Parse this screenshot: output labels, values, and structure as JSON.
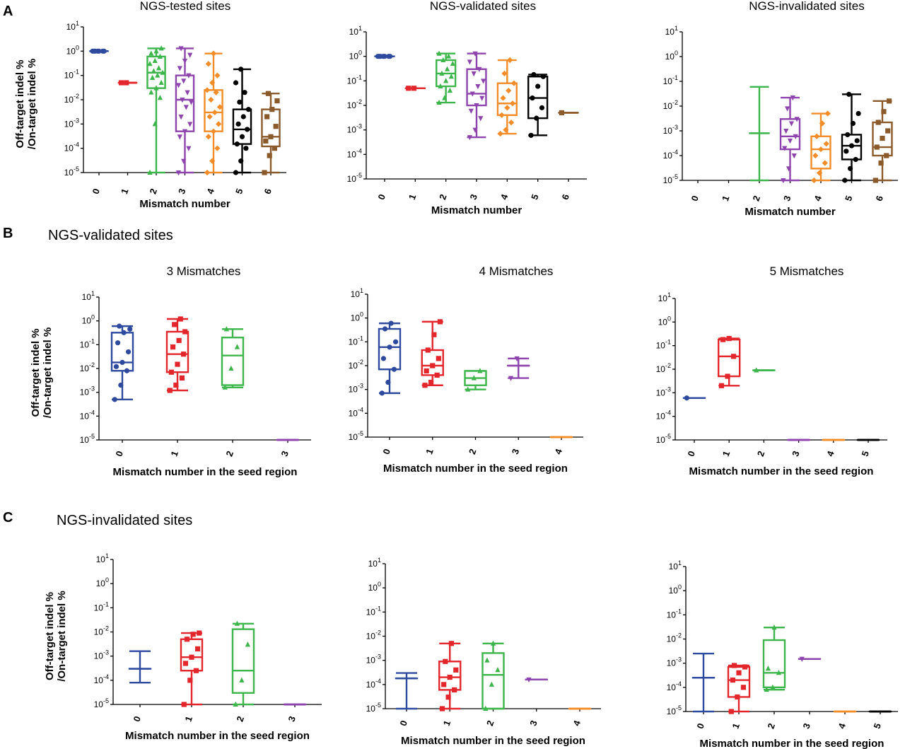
{
  "figure": {
    "panel_letters": [
      "A",
      "B",
      "C"
    ],
    "section_titles": {
      "B": "NGS-validated  sites",
      "C": "NGS-invalidated  sites"
    },
    "y_ticks": [
      "10^-5",
      "10^-4",
      "10^-3",
      "10^-2",
      "10^-1",
      "10^0",
      "10^1"
    ],
    "y_axis_label_line1": "Off-target indel %",
    "y_axis_label_line2": "/On-target indel %",
    "colors": {
      "c0": "#2e4a9e",
      "c1": "#e2262b",
      "c2": "#3cb54a",
      "c3": "#8e44ad",
      "c4": "#f28c28",
      "c5": "#000000",
      "c6": "#8b5a2b"
    },
    "marker_shapes": {
      "c0": "circle",
      "c1": "square",
      "c2": "triangle-up",
      "c3": "triangle-down",
      "c4": "diamond",
      "c5": "circle",
      "c6": "square"
    }
  },
  "chart_data": [
    {
      "id": "A1",
      "type": "box",
      "panel": "A",
      "title": "NGS-tested sites",
      "xlabel": "Mismatch number",
      "ylabel": "Off-target indel % /On-target indel %",
      "yscale": "log",
      "ylim": [
        1e-05,
        10
      ],
      "categories": [
        "0",
        "1",
        "2",
        "3",
        "4",
        "5",
        "6"
      ],
      "boxes": [
        {
          "min": 1.0,
          "q1": 1.0,
          "median": 1.0,
          "q3": 1.0,
          "max": 1.0,
          "points": [
            1.0,
            1.0,
            1.0,
            1.0,
            1.0,
            1.0,
            1.0
          ]
        },
        {
          "min": 0.05,
          "q1": 0.05,
          "median": 0.05,
          "q3": 0.05,
          "max": 0.05,
          "points": [
            0.05,
            0.05
          ]
        },
        {
          "min": 1e-05,
          "q1": 0.03,
          "median": 0.13,
          "q3": 0.6,
          "max": 1.3,
          "points": [
            1e-05,
            0.001,
            0.012,
            0.02,
            0.03,
            0.05,
            0.08,
            0.1,
            0.13,
            0.15,
            0.2,
            0.3,
            0.4,
            0.6,
            0.8,
            1.0,
            1.3
          ]
        },
        {
          "min": 1e-05,
          "q1": 0.0005,
          "median": 0.01,
          "q3": 0.1,
          "max": 1.3,
          "points": [
            1e-05,
            3e-05,
            0.0001,
            0.0003,
            0.0005,
            0.001,
            0.002,
            0.005,
            0.008,
            0.01,
            0.02,
            0.04,
            0.06,
            0.1,
            0.2,
            0.4,
            0.7,
            1.3
          ]
        },
        {
          "min": 1e-05,
          "q1": 0.0005,
          "median": 0.003,
          "q3": 0.025,
          "max": 0.8,
          "points": [
            1e-05,
            3e-05,
            0.0001,
            0.0003,
            0.0005,
            0.001,
            0.002,
            0.003,
            0.005,
            0.01,
            0.02,
            0.025,
            0.05,
            0.1,
            0.3,
            0.8
          ]
        },
        {
          "min": 1e-05,
          "q1": 0.00015,
          "median": 0.0006,
          "q3": 0.004,
          "max": 0.18,
          "points": [
            1e-05,
            3e-05,
            0.0001,
            0.00015,
            0.0003,
            0.0006,
            0.001,
            0.002,
            0.004,
            0.008,
            0.02,
            0.05,
            0.18
          ]
        },
        {
          "min": 1e-05,
          "q1": 0.00012,
          "median": 0.0003,
          "q3": 0.004,
          "max": 0.018,
          "points": [
            1e-05,
            5e-05,
            0.0001,
            0.0002,
            0.0003,
            0.0008,
            0.002,
            0.004,
            0.009,
            0.018
          ]
        }
      ]
    },
    {
      "id": "A2",
      "type": "box",
      "panel": "A",
      "title": "NGS-validated sites",
      "xlabel": "Mismatch number",
      "ylabel": "",
      "yscale": "log",
      "ylim": [
        1e-05,
        10
      ],
      "categories": [
        "0",
        "1",
        "2",
        "3",
        "4",
        "5",
        "6"
      ],
      "boxes": [
        {
          "min": 1.0,
          "q1": 1.0,
          "median": 1.0,
          "q3": 1.0,
          "max": 1.0,
          "points": [
            1.0,
            1.0,
            1.0,
            1.0,
            1.0,
            1.0,
            1.0
          ]
        },
        {
          "min": 0.05,
          "q1": 0.05,
          "median": 0.05,
          "q3": 0.05,
          "max": 0.05,
          "points": [
            0.05,
            0.05
          ]
        },
        {
          "min": 0.013,
          "q1": 0.06,
          "median": 0.2,
          "q3": 0.7,
          "max": 1.3,
          "points": [
            0.013,
            0.02,
            0.04,
            0.06,
            0.1,
            0.15,
            0.2,
            0.3,
            0.5,
            0.7,
            1.0,
            1.3
          ]
        },
        {
          "min": 0.0005,
          "q1": 0.01,
          "median": 0.03,
          "q3": 0.3,
          "max": 1.3,
          "points": [
            0.0005,
            0.001,
            0.003,
            0.006,
            0.01,
            0.02,
            0.03,
            0.06,
            0.1,
            0.2,
            0.3,
            0.6,
            1.3
          ]
        },
        {
          "min": 0.0007,
          "q1": 0.004,
          "median": 0.012,
          "q3": 0.08,
          "max": 0.7,
          "points": [
            0.0007,
            0.001,
            0.002,
            0.004,
            0.008,
            0.012,
            0.02,
            0.04,
            0.08,
            0.2,
            0.7
          ]
        },
        {
          "min": 0.0006,
          "q1": 0.003,
          "median": 0.02,
          "q3": 0.15,
          "max": 0.18,
          "points": [
            0.0006,
            0.003,
            0.008,
            0.02,
            0.06,
            0.15,
            0.18
          ]
        },
        {
          "min": 0.005,
          "q1": 0.005,
          "median": 0.005,
          "q3": 0.005,
          "max": 0.005,
          "points": [
            0.005
          ]
        }
      ]
    },
    {
      "id": "A3",
      "type": "box",
      "panel": "A",
      "title": "NGS-invalidated sites",
      "xlabel": "Mismatch number",
      "ylabel": "",
      "yscale": "log",
      "ylim": [
        1e-05,
        10
      ],
      "categories": [
        "0",
        "1",
        "2",
        "3",
        "4",
        "5",
        "6"
      ],
      "boxes": [
        null,
        null,
        {
          "min": 1e-05,
          "q1": 0.0008,
          "median": 0.0008,
          "q3": 0.0008,
          "max": 0.06,
          "points": []
        },
        {
          "min": 1e-05,
          "q1": 0.00018,
          "median": 0.0006,
          "q3": 0.003,
          "max": 0.022,
          "points": [
            1e-05,
            3e-05,
            0.0001,
            0.0002,
            0.0004,
            0.0006,
            0.001,
            0.002,
            0.003,
            0.008,
            0.022
          ]
        },
        {
          "min": 1e-05,
          "q1": 3e-05,
          "median": 0.00018,
          "q3": 0.0006,
          "max": 0.005,
          "points": [
            1e-05,
            2e-05,
            5e-05,
            0.0001,
            0.00018,
            0.0003,
            0.0006,
            0.002,
            0.005
          ]
        },
        {
          "min": 1e-05,
          "q1": 7e-05,
          "median": 0.00025,
          "q3": 0.0007,
          "max": 0.03,
          "points": [
            1e-05,
            3e-05,
            7e-05,
            0.00015,
            0.00025,
            0.0004,
            0.0007,
            0.002,
            0.005,
            0.03
          ]
        },
        {
          "min": 1e-05,
          "q1": 0.0001,
          "median": 0.00022,
          "q3": 0.0022,
          "max": 0.016,
          "points": [
            1e-05,
            5e-05,
            0.0001,
            0.00022,
            0.0005,
            0.001,
            0.0022,
            0.006,
            0.016
          ]
        }
      ]
    },
    {
      "id": "B1",
      "type": "box",
      "panel": "B",
      "title": "3 Mismatches",
      "xlabel": "Mismatch number in the seed region",
      "ylabel": "Off-target indel % /On-target indel %",
      "yscale": "log",
      "ylim": [
        1e-05,
        10
      ],
      "categories": [
        "0",
        "1",
        "2",
        "3"
      ],
      "boxes": [
        {
          "min": 0.0005,
          "q1": 0.008,
          "median": 0.018,
          "q3": 0.32,
          "max": 0.6,
          "points": [
            0.0005,
            0.002,
            0.008,
            0.012,
            0.018,
            0.05,
            0.12,
            0.32,
            0.45,
            0.6
          ]
        },
        {
          "min": 0.0012,
          "q1": 0.007,
          "median": 0.04,
          "q3": 0.35,
          "max": 1.2,
          "points": [
            0.0012,
            0.002,
            0.004,
            0.007,
            0.015,
            0.04,
            0.08,
            0.15,
            0.35,
            0.7,
            1.2
          ]
        },
        {
          "min": 0.0016,
          "q1": 0.002,
          "median": 0.035,
          "q3": 0.2,
          "max": 0.45,
          "points": [
            0.0016,
            0.01,
            0.08,
            0.45
          ]
        },
        {
          "min": 1e-05,
          "q1": 1e-05,
          "median": 1e-05,
          "q3": 1e-05,
          "max": 1e-05,
          "points": []
        }
      ]
    },
    {
      "id": "B2",
      "type": "box",
      "panel": "B",
      "title": "4 Mismatches",
      "xlabel": "Mismatch number in the seed region",
      "ylabel": "",
      "yscale": "log",
      "ylim": [
        1e-05,
        10
      ],
      "categories": [
        "0",
        "1",
        "2",
        "3",
        "4"
      ],
      "boxes": [
        {
          "min": 0.0007,
          "q1": 0.007,
          "median": 0.06,
          "q3": 0.35,
          "max": 0.6,
          "points": [
            0.0007,
            0.002,
            0.007,
            0.02,
            0.06,
            0.1,
            0.35,
            0.6
          ]
        },
        {
          "min": 0.0015,
          "q1": 0.004,
          "median": 0.01,
          "q3": 0.045,
          "max": 0.7,
          "points": [
            0.0015,
            0.002,
            0.004,
            0.006,
            0.01,
            0.02,
            0.045,
            0.2,
            0.7
          ]
        },
        {
          "min": 0.001,
          "q1": 0.0015,
          "median": 0.003,
          "q3": 0.006,
          "max": 0.006,
          "points": [
            0.001,
            0.003,
            0.006
          ]
        },
        {
          "min": 0.003,
          "q1": 0.01,
          "median": 0.01,
          "q3": 0.01,
          "max": 0.02,
          "points": [
            0.003,
            0.02
          ]
        },
        {
          "min": 1e-05,
          "q1": 1e-05,
          "median": 1e-05,
          "q3": 1e-05,
          "max": 1e-05,
          "points": []
        }
      ]
    },
    {
      "id": "B3",
      "type": "box",
      "panel": "B",
      "title": "5 Mismatches",
      "xlabel": "Mismatch number in the seed region",
      "ylabel": "",
      "yscale": "log",
      "ylim": [
        1e-05,
        10
      ],
      "categories": [
        "0",
        "1",
        "2",
        "3",
        "4",
        "5"
      ],
      "boxes": [
        {
          "min": 0.0006,
          "q1": 0.0006,
          "median": 0.0006,
          "q3": 0.0006,
          "max": 0.0006,
          "points": [
            0.0006
          ]
        },
        {
          "min": 0.002,
          "q1": 0.005,
          "median": 0.035,
          "q3": 0.18,
          "max": 0.2,
          "points": [
            0.002,
            0.005,
            0.035,
            0.18,
            0.2
          ]
        },
        {
          "min": 0.009,
          "q1": 0.009,
          "median": 0.009,
          "q3": 0.009,
          "max": 0.009,
          "points": [
            0.009
          ]
        },
        {
          "min": 1e-05,
          "q1": 1e-05,
          "median": 1e-05,
          "q3": 1e-05,
          "max": 1e-05,
          "points": []
        },
        {
          "min": 1e-05,
          "q1": 1e-05,
          "median": 1e-05,
          "q3": 1e-05,
          "max": 1e-05,
          "points": []
        },
        {
          "min": 1e-05,
          "q1": 1e-05,
          "median": 1e-05,
          "q3": 1e-05,
          "max": 1e-05,
          "points": []
        }
      ]
    },
    {
      "id": "C1",
      "type": "box",
      "panel": "C",
      "title": "",
      "xlabel": "Mismatch number in the seed region",
      "ylabel": "Off-target indel % /On-target indel %",
      "yscale": "log",
      "ylim": [
        1e-05,
        10
      ],
      "categories": [
        "0",
        "1",
        "2",
        "3"
      ],
      "boxes": [
        {
          "min": 8e-05,
          "q1": 0.0003,
          "median": 0.0003,
          "q3": 0.0003,
          "max": 0.0016,
          "points": []
        },
        {
          "min": 1e-05,
          "q1": 0.00025,
          "median": 0.0009,
          "q3": 0.005,
          "max": 0.009,
          "points": [
            1e-05,
            0.0001,
            0.00025,
            0.0005,
            0.0009,
            0.002,
            0.005,
            0.008,
            0.009
          ]
        },
        {
          "min": 1e-05,
          "q1": 3e-05,
          "median": 0.00025,
          "q3": 0.013,
          "max": 0.022,
          "points": [
            1e-05,
            0.0001,
            0.003,
            0.022
          ]
        },
        {
          "min": 1e-05,
          "q1": 1e-05,
          "median": 1e-05,
          "q3": 1e-05,
          "max": 1e-05,
          "points": []
        }
      ]
    },
    {
      "id": "C2",
      "type": "box",
      "panel": "C",
      "title": "",
      "xlabel": "Mismatch number in the seed region",
      "ylabel": "",
      "yscale": "log",
      "ylim": [
        1e-05,
        10
      ],
      "categories": [
        "0",
        "1",
        "2",
        "3",
        "4"
      ],
      "boxes": [
        {
          "min": 1e-05,
          "q1": 0.00018,
          "median": 0.00018,
          "q3": 0.00018,
          "max": 0.0003,
          "points": []
        },
        {
          "min": 1e-05,
          "q1": 6e-05,
          "median": 0.0002,
          "q3": 0.0009,
          "max": 0.005,
          "points": [
            1e-05,
            3e-05,
            6e-05,
            0.0001,
            0.0002,
            0.0004,
            0.0009,
            0.005
          ]
        },
        {
          "min": 1e-05,
          "q1": 1e-05,
          "median": 0.00025,
          "q3": 0.002,
          "max": 0.005,
          "points": [
            1e-05,
            0.0001,
            0.0004,
            0.001,
            0.005
          ]
        },
        {
          "min": 0.00016,
          "q1": 0.00016,
          "median": 0.00016,
          "q3": 0.00016,
          "max": 0.00016,
          "points": [
            0.00016
          ]
        },
        {
          "min": 1e-05,
          "q1": 1e-05,
          "median": 1e-05,
          "q3": 1e-05,
          "max": 1e-05,
          "points": []
        }
      ]
    },
    {
      "id": "C3",
      "type": "box",
      "panel": "C",
      "title": "",
      "xlabel": "Mismatch number in the seed region",
      "ylabel": "",
      "yscale": "log",
      "ylim": [
        1e-05,
        10
      ],
      "categories": [
        "0",
        "1",
        "2",
        "3",
        "4",
        "5"
      ],
      "boxes": [
        {
          "min": 1e-05,
          "q1": 0.00025,
          "median": 0.00025,
          "q3": 0.00025,
          "max": 0.0025,
          "points": []
        },
        {
          "min": 1e-05,
          "q1": 4e-05,
          "median": 0.0002,
          "q3": 0.0007,
          "max": 0.0008,
          "points": [
            1e-05,
            4e-05,
            0.0001,
            0.0002,
            0.0004,
            0.0007,
            0.0008
          ]
        },
        {
          "min": 8e-05,
          "q1": 0.0001,
          "median": 0.0004,
          "q3": 0.009,
          "max": 0.03,
          "points": [
            8e-05,
            0.0001,
            0.0004,
            0.0006,
            0.03
          ]
        },
        {
          "min": 0.0015,
          "q1": 0.0015,
          "median": 0.0015,
          "q3": 0.0015,
          "max": 0.0015,
          "points": [
            0.0015
          ]
        },
        {
          "min": 1e-05,
          "q1": 1e-05,
          "median": 1e-05,
          "q3": 1e-05,
          "max": 1e-05,
          "points": []
        },
        {
          "min": 1e-05,
          "q1": 1e-05,
          "median": 1e-05,
          "q3": 1e-05,
          "max": 1e-05,
          "points": []
        }
      ]
    }
  ]
}
